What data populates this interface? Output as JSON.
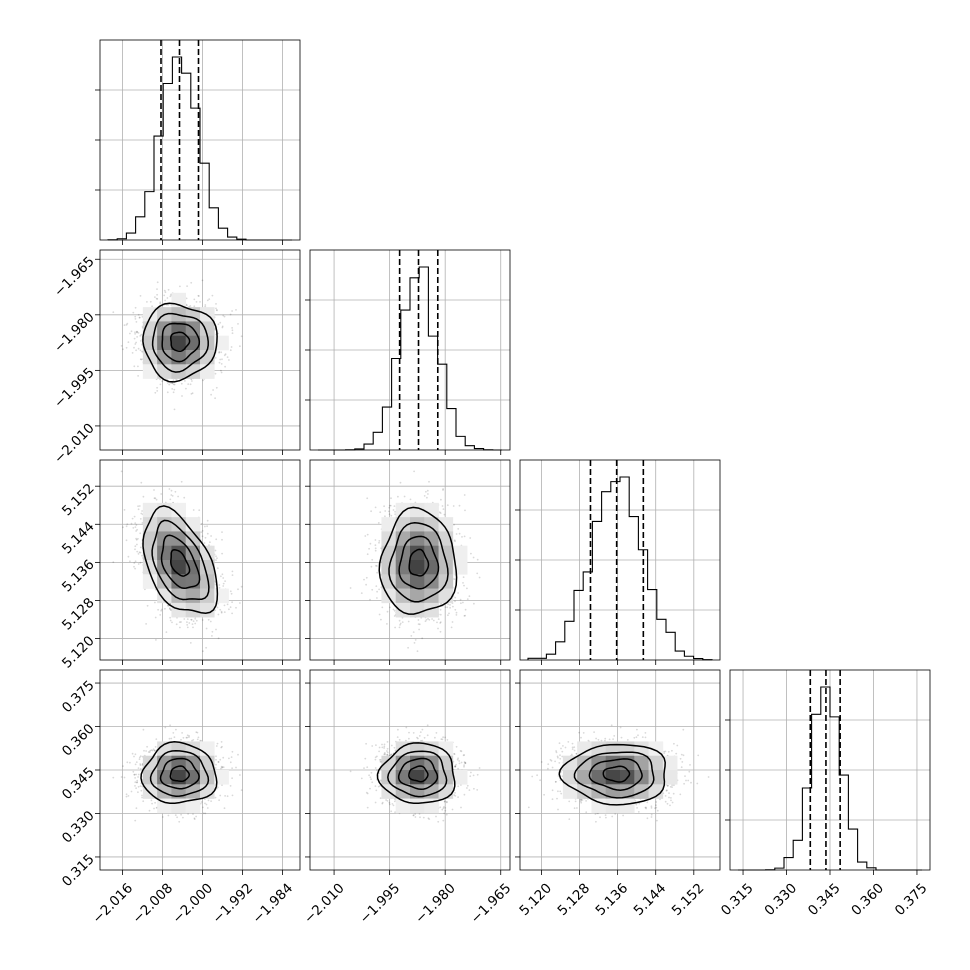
{
  "chart_data": {
    "type": "corner",
    "colors": {
      "line": "#000000",
      "grid": "#b0b0b0",
      "density": "#000000"
    },
    "grid": true,
    "parameters": [
      {
        "range": [
          -2.0205,
          -1.9805
        ],
        "ticks": [
          -2.016,
          -2.008,
          -2.0,
          -1.992,
          -1.984
        ],
        "tick_labels": [
          "−2.016",
          "−2.008",
          "−2.000",
          "−1.992",
          "−1.984"
        ],
        "quantiles": [
          -2.0083,
          -2.0046,
          -2.0008
        ],
        "mean": -2.0046,
        "sd": 0.0037,
        "hist_ticks": [
          0.25,
          0.5,
          0.75
        ]
      },
      {
        "range": [
          -2.0165,
          -1.9625
        ],
        "ticks": [
          -2.01,
          -1.995,
          -1.98,
          -1.965
        ],
        "tick_labels": [
          "−2.010",
          "−1.995",
          "−1.980",
          "−1.965"
        ],
        "quantiles": [
          -1.9923,
          -1.9872,
          -1.982
        ],
        "mean": -1.9872,
        "sd": 0.0051,
        "hist_ticks": [
          0.25,
          0.5,
          0.75
        ]
      },
      {
        "range": [
          5.1155,
          5.1575
        ],
        "ticks": [
          5.12,
          5.128,
          5.136,
          5.144,
          5.152
        ],
        "tick_labels": [
          "5.120",
          "5.128",
          "5.136",
          "5.144",
          "5.152"
        ],
        "quantiles": [
          5.1303,
          5.1358,
          5.1414
        ],
        "mean": 5.1358,
        "sd": 0.0055,
        "hist_ticks": [
          0.25,
          0.5,
          0.75
        ]
      },
      {
        "range": [
          0.3105,
          0.3795
        ],
        "ticks": [
          0.315,
          0.33,
          0.345,
          0.36,
          0.375
        ],
        "tick_labels": [
          "0.315",
          "0.330",
          "0.345",
          "0.360",
          "0.375"
        ],
        "quantiles": [
          0.3382,
          0.3436,
          0.3485
        ],
        "mean": 0.3436,
        "sd": 0.0052,
        "hist_ticks": [
          0.25,
          0.5,
          0.75
        ]
      }
    ],
    "correlations": [
      [
        1,
        0,
        -0.45,
        0
      ],
      [
        0,
        1,
        0,
        0
      ],
      [
        -0.45,
        0,
        1,
        0
      ],
      [
        0,
        0,
        0,
        1
      ]
    ]
  }
}
